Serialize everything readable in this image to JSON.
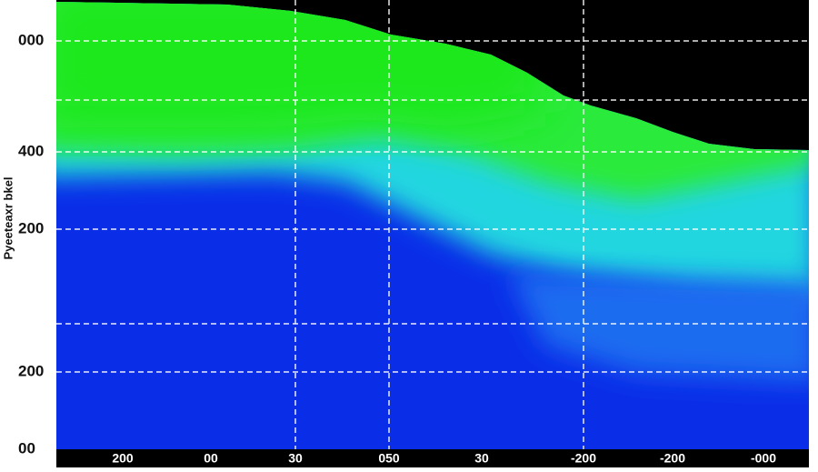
{
  "chart_data": {
    "type": "heatmap",
    "y_label": "Pyeeteaxr bkel",
    "y_categories": [
      "000",
      "400",
      "200",
      "200",
      "00"
    ],
    "x_categories": [
      "200",
      "00",
      "30",
      "050",
      "30",
      "-200",
      "-200",
      "-000"
    ]
  }
}
